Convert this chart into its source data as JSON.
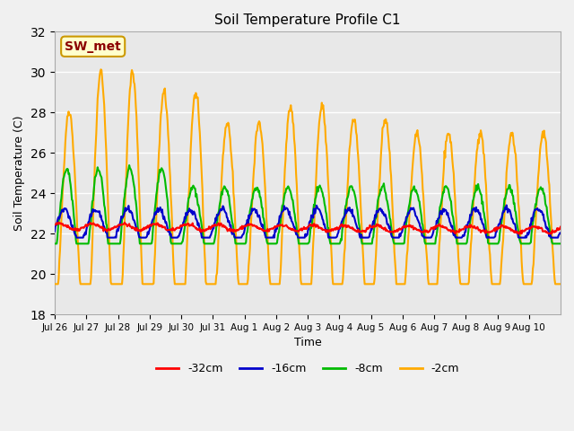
{
  "title": "Soil Temperature Profile C1",
  "xlabel": "Time",
  "ylabel": "Soil Temperature (C)",
  "ylim": [
    18,
    32
  ],
  "yticks": [
    18,
    20,
    22,
    24,
    26,
    28,
    30,
    32
  ],
  "plot_bg_color": "#e8e8e8",
  "fig_bg_color": "#f0f0f0",
  "annotation_label": "SW_met",
  "annotation_bg": "#ffffcc",
  "annotation_border": "#cc9900",
  "annotation_text_color": "#8b0000",
  "series": {
    "-32cm": {
      "color": "#ff0000",
      "linewidth": 1.5
    },
    "-16cm": {
      "color": "#0000cc",
      "linewidth": 1.5
    },
    "-8cm": {
      "color": "#00bb00",
      "linewidth": 1.5
    },
    "-2cm": {
      "color": "#ffaa00",
      "linewidth": 1.5
    }
  },
  "n_days": 16,
  "x_tick_labels": [
    "Jul 26",
    "Jul 27",
    "Jul 28",
    "Jul 29",
    "Jul 30",
    "Jul 31",
    "Aug 1",
    "Aug 2",
    "Aug 3",
    "Aug 4",
    "Aug 5",
    "Aug 6",
    "Aug 7",
    "Aug 8",
    "Aug 9",
    "Aug 10"
  ],
  "legend_labels": [
    "-32cm",
    "-16cm",
    "-8cm",
    "-2cm"
  ],
  "legend_colors": [
    "#ff0000",
    "#0000cc",
    "#00bb00",
    "#ffaa00"
  ]
}
